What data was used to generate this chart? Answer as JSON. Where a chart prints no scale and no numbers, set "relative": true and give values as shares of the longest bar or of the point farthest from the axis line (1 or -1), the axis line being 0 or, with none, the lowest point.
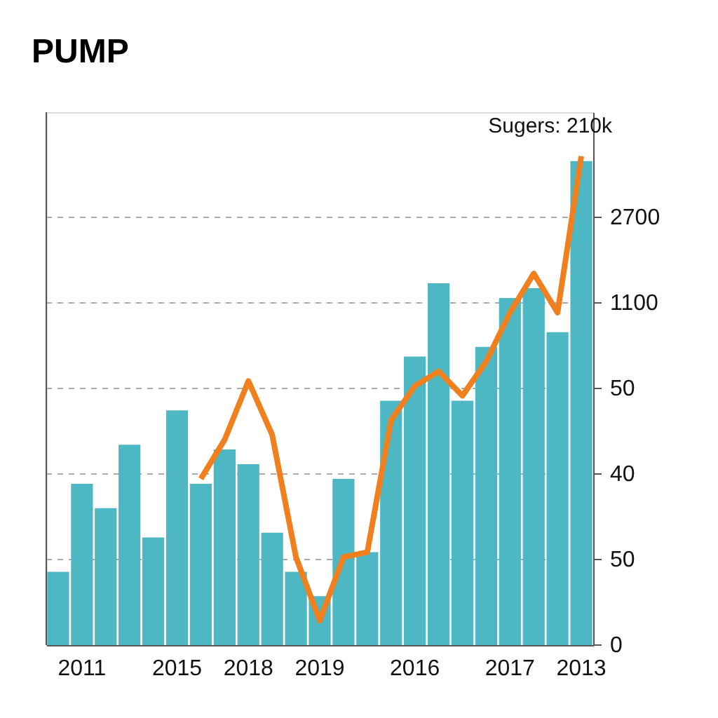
{
  "chart_data": {
    "type": "bar",
    "title": "PUMP",
    "relative": true,
    "categories": [
      null,
      "2011",
      null,
      null,
      null,
      "2015",
      null,
      null,
      "2018",
      null,
      null,
      "2019",
      null,
      null,
      null,
      "2016",
      null,
      null,
      null,
      "2017",
      null,
      null,
      "2013"
    ],
    "series": [
      {
        "color": "#4db8c4",
        "values": [
          0.15,
          0.33,
          0.28,
          0.41,
          0.22,
          0.48,
          0.33,
          0.4,
          0.37,
          0.23,
          0.15,
          0.1,
          0.34,
          0.19,
          0.5,
          0.59,
          0.74,
          0.5,
          0.61,
          0.71,
          0.73,
          0.64,
          0.99
        ]
      },
      {
        "type": "line",
        "color": "#f07f1e",
        "values": [
          null,
          null,
          null,
          null,
          null,
          null,
          0.34,
          0.42,
          0.54,
          0.43,
          0.18,
          0.05,
          0.18,
          0.19,
          0.46,
          0.53,
          0.56,
          0.51,
          0.58,
          0.68,
          0.76,
          0.68,
          1.0
        ]
      }
    ],
    "grid": "y",
    "annotations": [
      {
        "text": "Sugers: 210k",
        "x": "2013",
        "y": 1.0
      },
      "0",
      "50",
      "40",
      "50",
      "1100",
      "2700"
    ]
  }
}
